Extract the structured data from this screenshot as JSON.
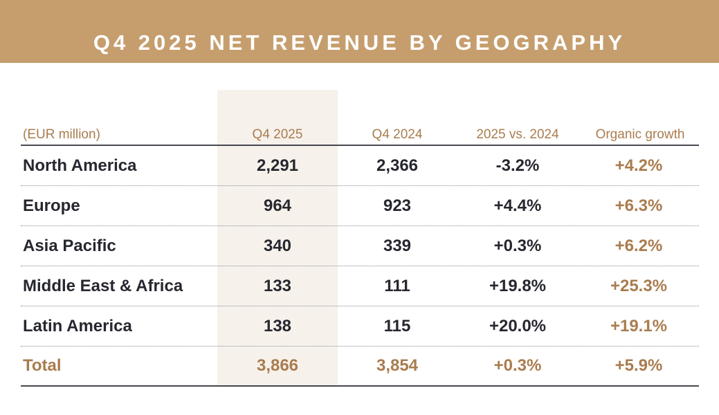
{
  "title": "Q4 2025 NET REVENUE BY GEOGRAPHY",
  "colors": {
    "banner": "#C69E6E",
    "accent_text": "#A97C4E",
    "body_text": "#26272F",
    "highlight_column": "#F6F1EB"
  },
  "table": {
    "columns": [
      "(EUR million)",
      "Q4 2025",
      "Q4 2024",
      "2025 vs. 2024",
      "Organic growth"
    ],
    "rows": [
      {
        "region": "North America",
        "q4_2025": "2,291",
        "q4_2024": "2,366",
        "change": "-3.2%",
        "organic": "+4.2%"
      },
      {
        "region": "Europe",
        "q4_2025": "964",
        "q4_2024": "923",
        "change": "+4.4%",
        "organic": "+6.3%"
      },
      {
        "region": "Asia Pacific",
        "q4_2025": "340",
        "q4_2024": "339",
        "change": "+0.3%",
        "organic": "+6.2%"
      },
      {
        "region": "Middle East & Africa",
        "q4_2025": "133",
        "q4_2024": "111",
        "change": "+19.8%",
        "organic": "+25.3%"
      },
      {
        "region": "Latin America",
        "q4_2025": "138",
        "q4_2024": "115",
        "change": "+20.0%",
        "organic": "+19.1%"
      }
    ],
    "total": {
      "region": "Total",
      "q4_2025": "3,866",
      "q4_2024": "3,854",
      "change": "+0.3%",
      "organic": "+5.9%"
    }
  }
}
